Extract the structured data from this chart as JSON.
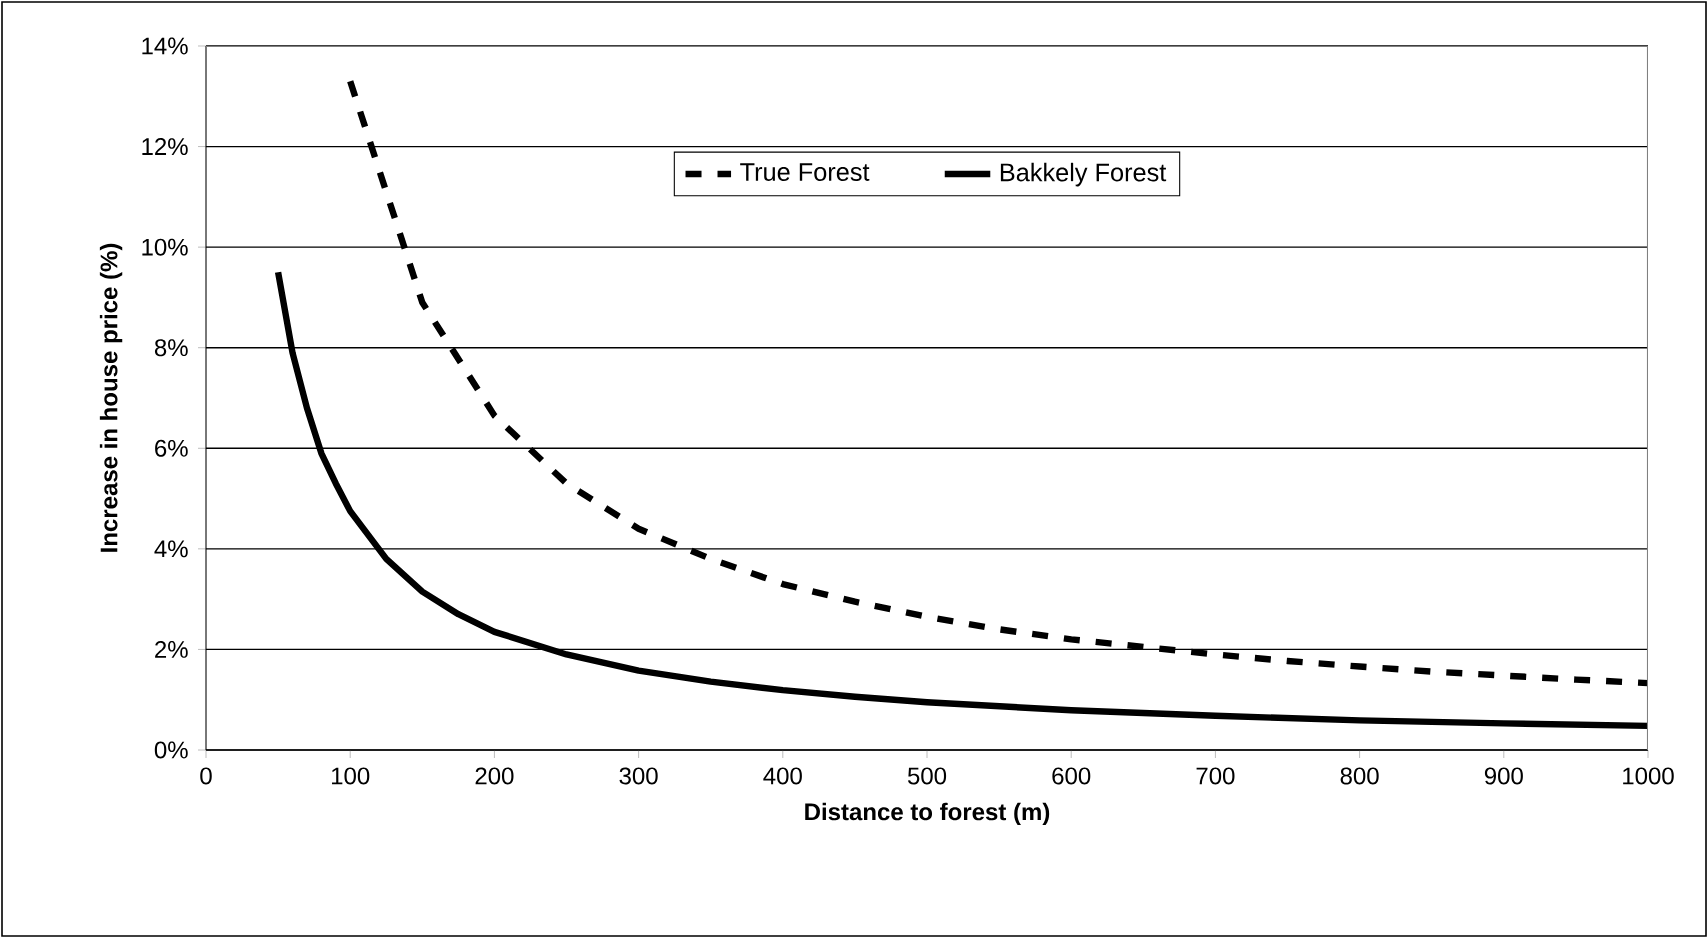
{
  "chart_data": {
    "type": "line",
    "xlabel": "Distance to forest (m)",
    "ylabel": "Increase in house price (%)",
    "xlim": [
      0,
      1000
    ],
    "xticks": [
      0,
      100,
      200,
      300,
      400,
      500,
      600,
      700,
      800,
      900,
      1000
    ],
    "ylim": [
      0,
      14
    ],
    "yticks": [
      {
        "value": 0,
        "label": "0%"
      },
      {
        "value": 2,
        "label": "2%"
      },
      {
        "value": 4,
        "label": "4%"
      },
      {
        "value": 6,
        "label": "6%"
      },
      {
        "value": 8,
        "label": "8%"
      },
      {
        "value": 10,
        "label": "10%"
      },
      {
        "value": 12,
        "label": "12%"
      },
      {
        "value": 14,
        "label": "14%"
      }
    ],
    "grid": "y",
    "legend": "top",
    "marker": "none",
    "series": [
      {
        "name": "True Forest",
        "color": "#000000",
        "line_style": "dashed",
        "x": [
          100,
          150,
          200,
          250,
          300,
          350,
          400,
          450,
          500,
          550,
          600,
          650,
          700,
          750,
          800,
          850,
          900,
          950,
          1000
        ],
        "values": [
          13.3,
          8.9,
          6.65,
          5.3,
          4.4,
          3.8,
          3.3,
          2.95,
          2.65,
          2.4,
          2.2,
          2.05,
          1.9,
          1.77,
          1.66,
          1.56,
          1.48,
          1.4,
          1.33
        ]
      },
      {
        "name": "Bakkely Forest",
        "color": "#000000",
        "line_style": "solid",
        "x": [
          50,
          60,
          70,
          80,
          90,
          100,
          125,
          150,
          175,
          200,
          250,
          300,
          350,
          400,
          450,
          500,
          600,
          700,
          800,
          900,
          1000
        ],
        "values": [
          9.5,
          7.9,
          6.8,
          5.9,
          5.3,
          4.75,
          3.8,
          3.15,
          2.7,
          2.35,
          1.9,
          1.58,
          1.36,
          1.19,
          1.06,
          0.95,
          0.79,
          0.68,
          0.59,
          0.53,
          0.48
        ]
      }
    ]
  }
}
